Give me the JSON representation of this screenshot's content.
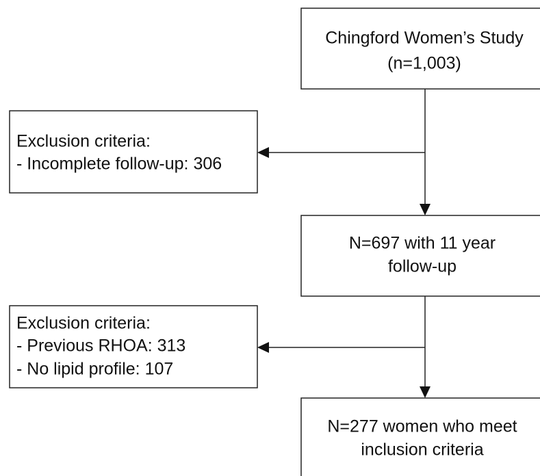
{
  "nodes": [
    {
      "lines": [
        "Chingford Women’s Study",
        "(n=1,003)"
      ]
    },
    {
      "lines": [
        "Exclusion criteria:",
        "- Incomplete follow-up: 306"
      ]
    },
    {
      "lines": [
        "N=697 with 11 year",
        "follow-up"
      ]
    },
    {
      "lines": [
        "Exclusion criteria:",
        "- Previous RHOA: 313",
        "- No lipid profile: 107"
      ]
    },
    {
      "lines": [
        "N=277 women who meet",
        "inclusion criteria"
      ]
    }
  ]
}
